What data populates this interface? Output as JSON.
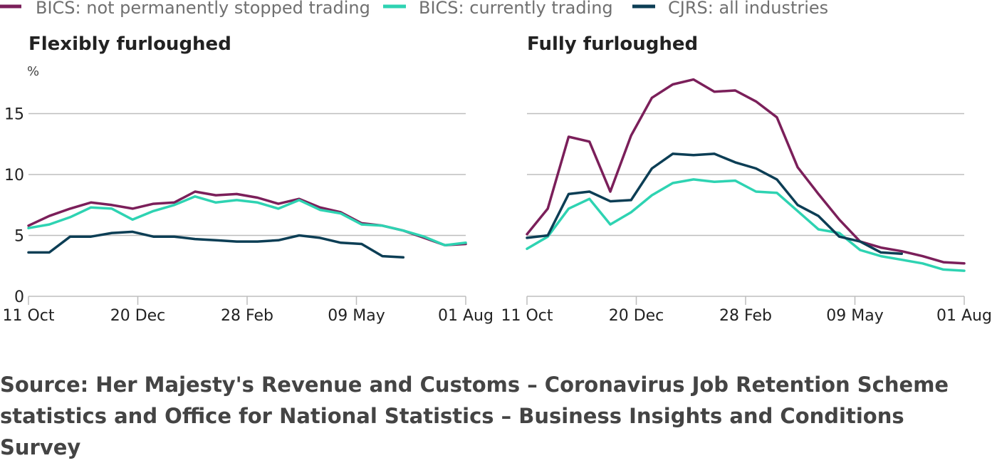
{
  "legend": [
    {
      "label": "BICS: not permanently stopped trading",
      "color": "#7b1f5a"
    },
    {
      "label": "BICS: currently trading",
      "color": "#2ed3b2"
    },
    {
      "label": "CJRS: all industries",
      "color": "#0c3e55"
    }
  ],
  "source": "Source: Her Majesty's Revenue and Customs – Coronavirus Job Retention Scheme statistics and Office for National Statistics – Business Insights and Conditions Survey",
  "chart_data": [
    {
      "type": "line",
      "title": "Flexibly furloughed",
      "ylabel": "%",
      "ylim": [
        0,
        18
      ],
      "yticks": [
        0,
        5,
        10,
        15
      ],
      "x_tick_labels": [
        "11 Oct",
        "20 Dec",
        "28 Feb",
        "09 May",
        "01 Aug"
      ],
      "grid": true,
      "legend_position": "top",
      "series": [
        {
          "name": "BICS: not permanently stopped trading",
          "color": "#7b1f5a",
          "values": [
            5.8,
            6.6,
            7.2,
            7.7,
            7.5,
            7.2,
            7.6,
            7.7,
            8.6,
            8.3,
            8.4,
            8.1,
            7.6,
            8.0,
            7.3,
            6.9,
            6.0,
            5.8,
            5.4,
            4.8,
            4.2,
            4.3
          ]
        },
        {
          "name": "BICS: currently trading",
          "color": "#2ed3b2",
          "values": [
            5.6,
            5.9,
            6.5,
            7.3,
            7.2,
            6.3,
            7.0,
            7.5,
            8.2,
            7.7,
            7.9,
            7.7,
            7.2,
            7.9,
            7.1,
            6.8,
            5.9,
            5.8,
            5.4,
            4.9,
            4.2,
            4.4
          ]
        },
        {
          "name": "CJRS: all industries",
          "color": "#0c3e55",
          "values": [
            3.6,
            3.6,
            4.9,
            4.9,
            5.2,
            5.3,
            4.9,
            4.9,
            4.7,
            4.6,
            4.5,
            4.5,
            4.6,
            5.0,
            4.8,
            4.4,
            4.3,
            3.3,
            3.2
          ]
        }
      ]
    },
    {
      "type": "line",
      "title": "Fully furloughed",
      "ylim": [
        0,
        18
      ],
      "yticks": [
        0,
        5,
        10,
        15
      ],
      "x_tick_labels": [
        "11 Oct",
        "20 Dec",
        "28 Feb",
        "09 May",
        "01 Aug"
      ],
      "grid": true,
      "legend_position": "top",
      "series": [
        {
          "name": "BICS: not permanently stopped trading",
          "color": "#7b1f5a",
          "values": [
            5.1,
            7.2,
            13.1,
            12.7,
            8.6,
            13.2,
            16.3,
            17.4,
            17.8,
            16.8,
            16.9,
            16.0,
            14.7,
            10.6,
            8.4,
            6.3,
            4.5,
            4.0,
            3.7,
            3.3,
            2.8,
            2.7
          ]
        },
        {
          "name": "BICS: currently trading",
          "color": "#2ed3b2",
          "values": [
            3.9,
            4.9,
            7.2,
            8.0,
            5.9,
            6.9,
            8.3,
            9.3,
            9.6,
            9.4,
            9.5,
            8.6,
            8.5,
            7.0,
            5.5,
            5.2,
            3.8,
            3.3,
            3.0,
            2.7,
            2.2,
            2.1
          ]
        },
        {
          "name": "CJRS: all industries",
          "color": "#0c3e55",
          "values": [
            4.8,
            5.0,
            8.4,
            8.6,
            7.8,
            7.9,
            10.5,
            11.7,
            11.6,
            11.7,
            11.0,
            10.5,
            9.6,
            7.5,
            6.6,
            4.9,
            4.5,
            3.6,
            3.5
          ]
        }
      ]
    }
  ]
}
